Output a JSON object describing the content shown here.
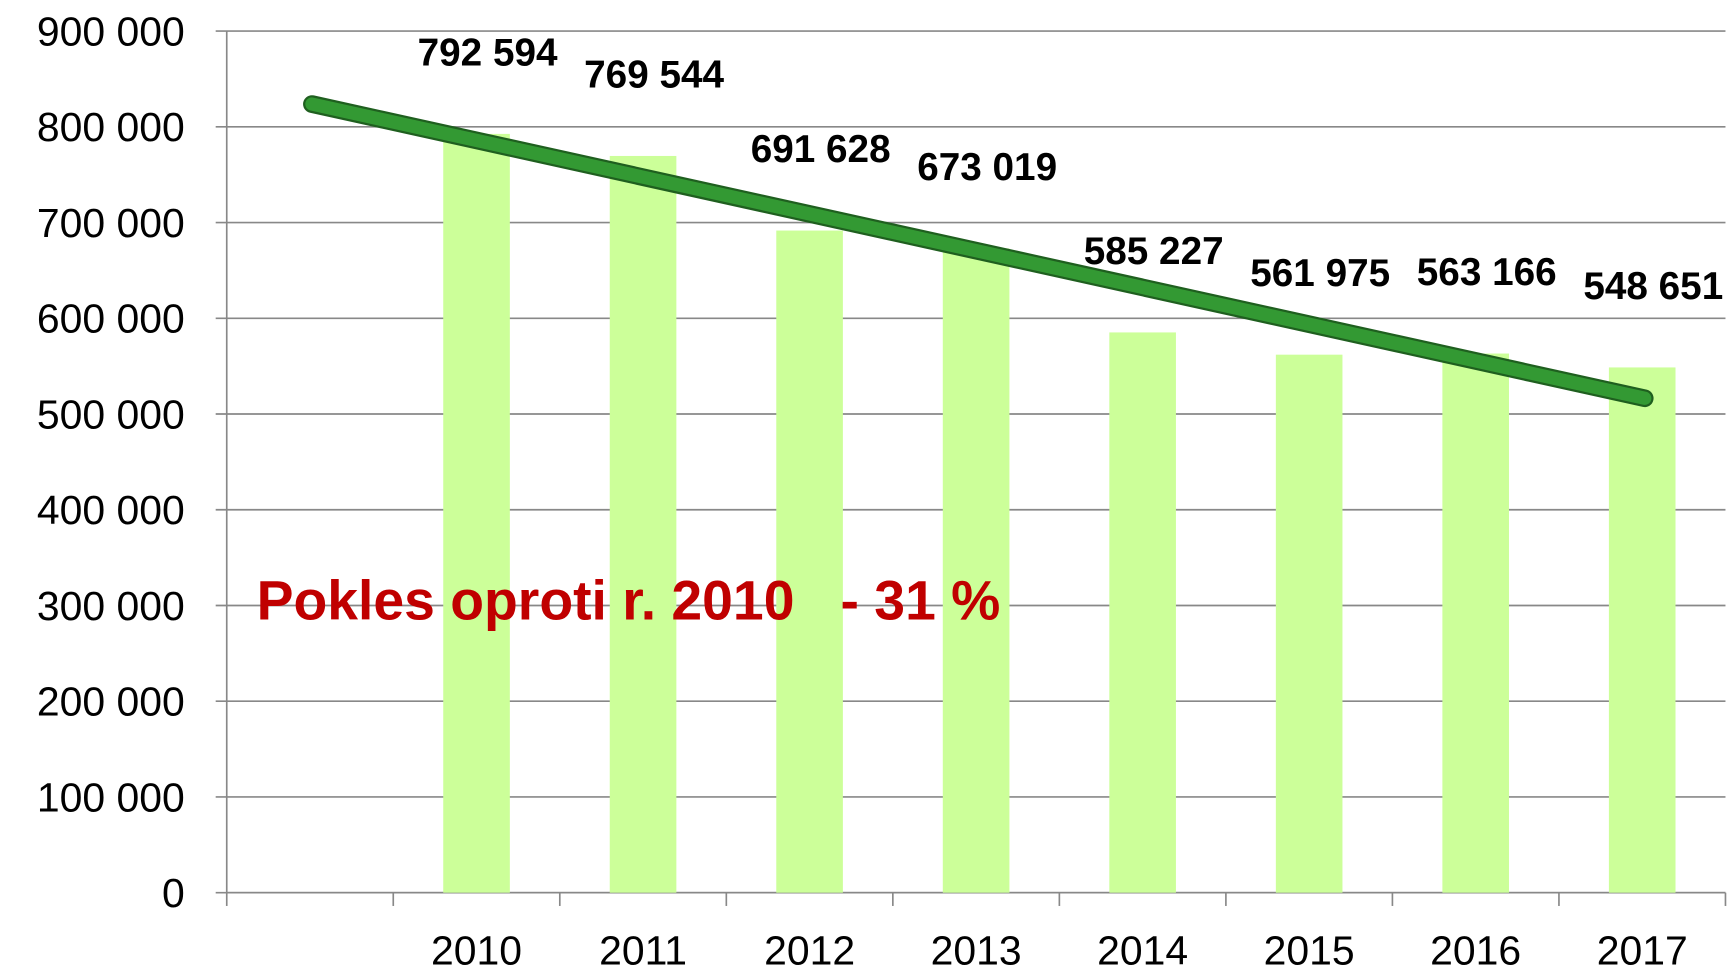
{
  "chart_data": {
    "type": "bar",
    "categories": [
      null,
      "2010",
      "2011",
      "2012",
      "2013",
      "2014",
      "2015",
      "2016",
      "2017"
    ],
    "values": [
      null,
      792594,
      769544,
      691628,
      673019,
      585227,
      561975,
      563166,
      548651
    ],
    "value_labels": [
      null,
      "792 594",
      "769 544",
      "691 628",
      "673 019",
      "585 227",
      "561 975",
      "563 166",
      "548 651"
    ],
    "color": "#ccff99",
    "ylim": [
      0,
      900000
    ],
    "yticks": [
      0,
      {
        "value": 100000,
        "label": "100 000"
      },
      {
        "value": 200000,
        "label": "200 000"
      },
      {
        "value": 300000,
        "label": "300 000"
      },
      {
        "value": 400000,
        "label": "400 000"
      },
      {
        "value": 500000,
        "label": "500 000"
      },
      {
        "value": 600000,
        "label": "600 000"
      },
      {
        "value": 700000,
        "label": "700 000"
      },
      {
        "value": 800000,
        "label": "800 000"
      },
      {
        "value": 900000,
        "label": "900 000"
      }
    ],
    "grid": true,
    "annotation": "Pokles oproti r. 2010   - 31 %"
  }
}
